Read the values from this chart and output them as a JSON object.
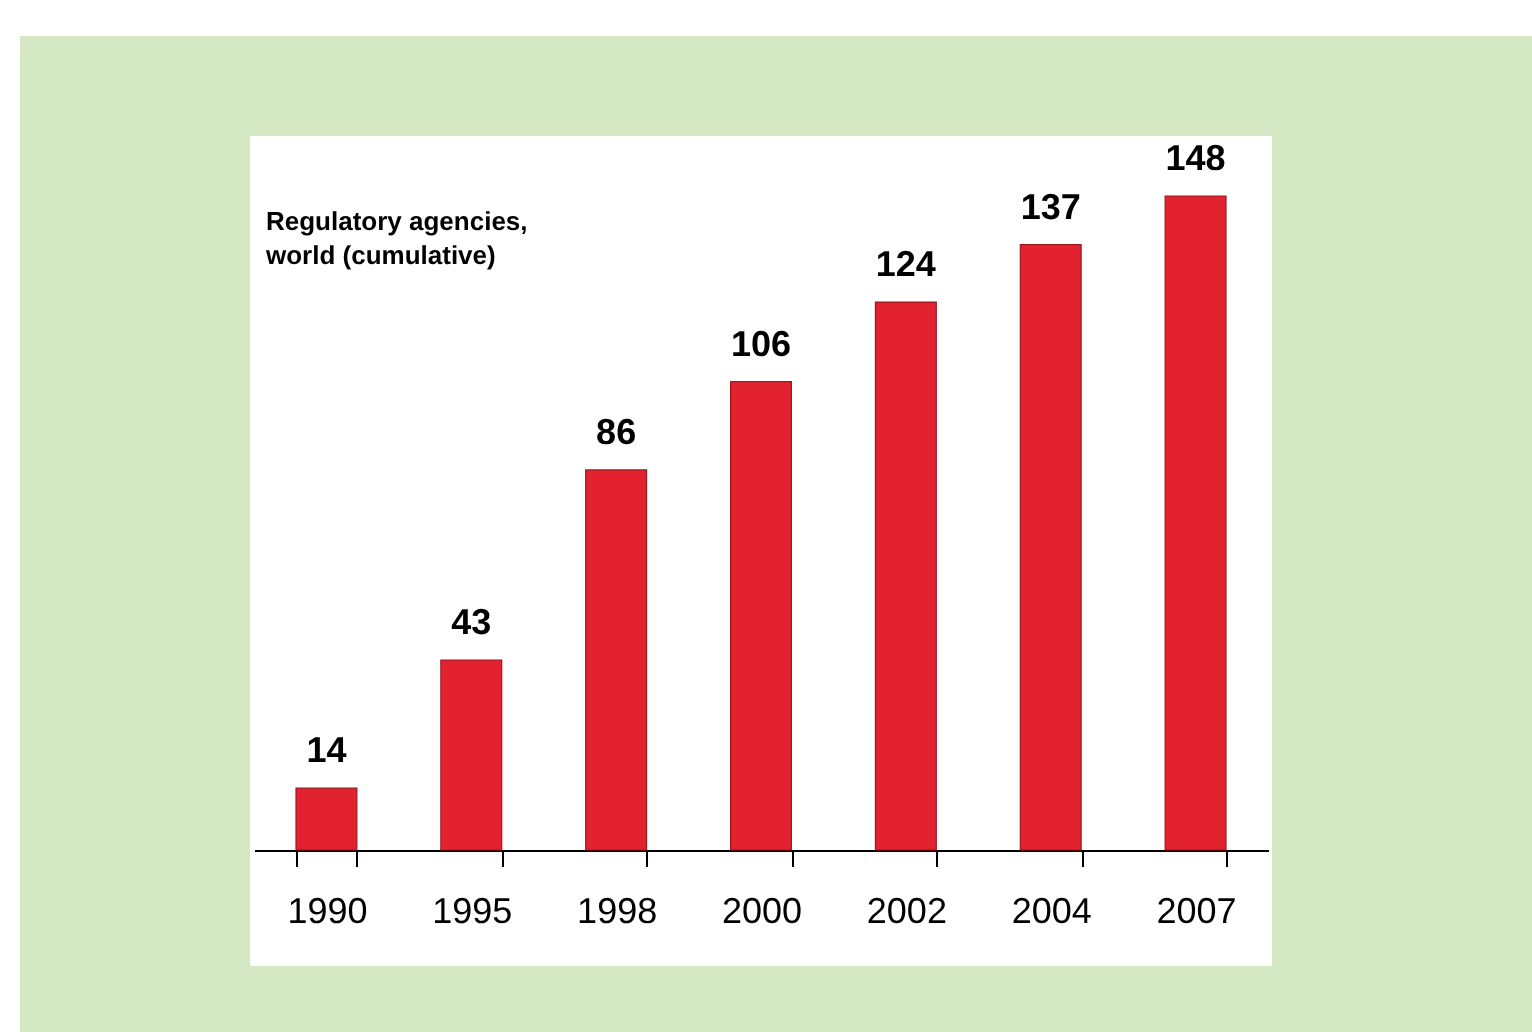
{
  "chart_data": {
    "type": "bar",
    "title": "Regulatory agencies,\nworld (cumulative)",
    "categories": [
      "1990",
      "1995",
      "1998",
      "2000",
      "2002",
      "2004",
      "2007"
    ],
    "values": [
      14,
      43,
      86,
      106,
      124,
      137,
      148
    ],
    "color": "#e3222f",
    "data_labels": true
  }
}
